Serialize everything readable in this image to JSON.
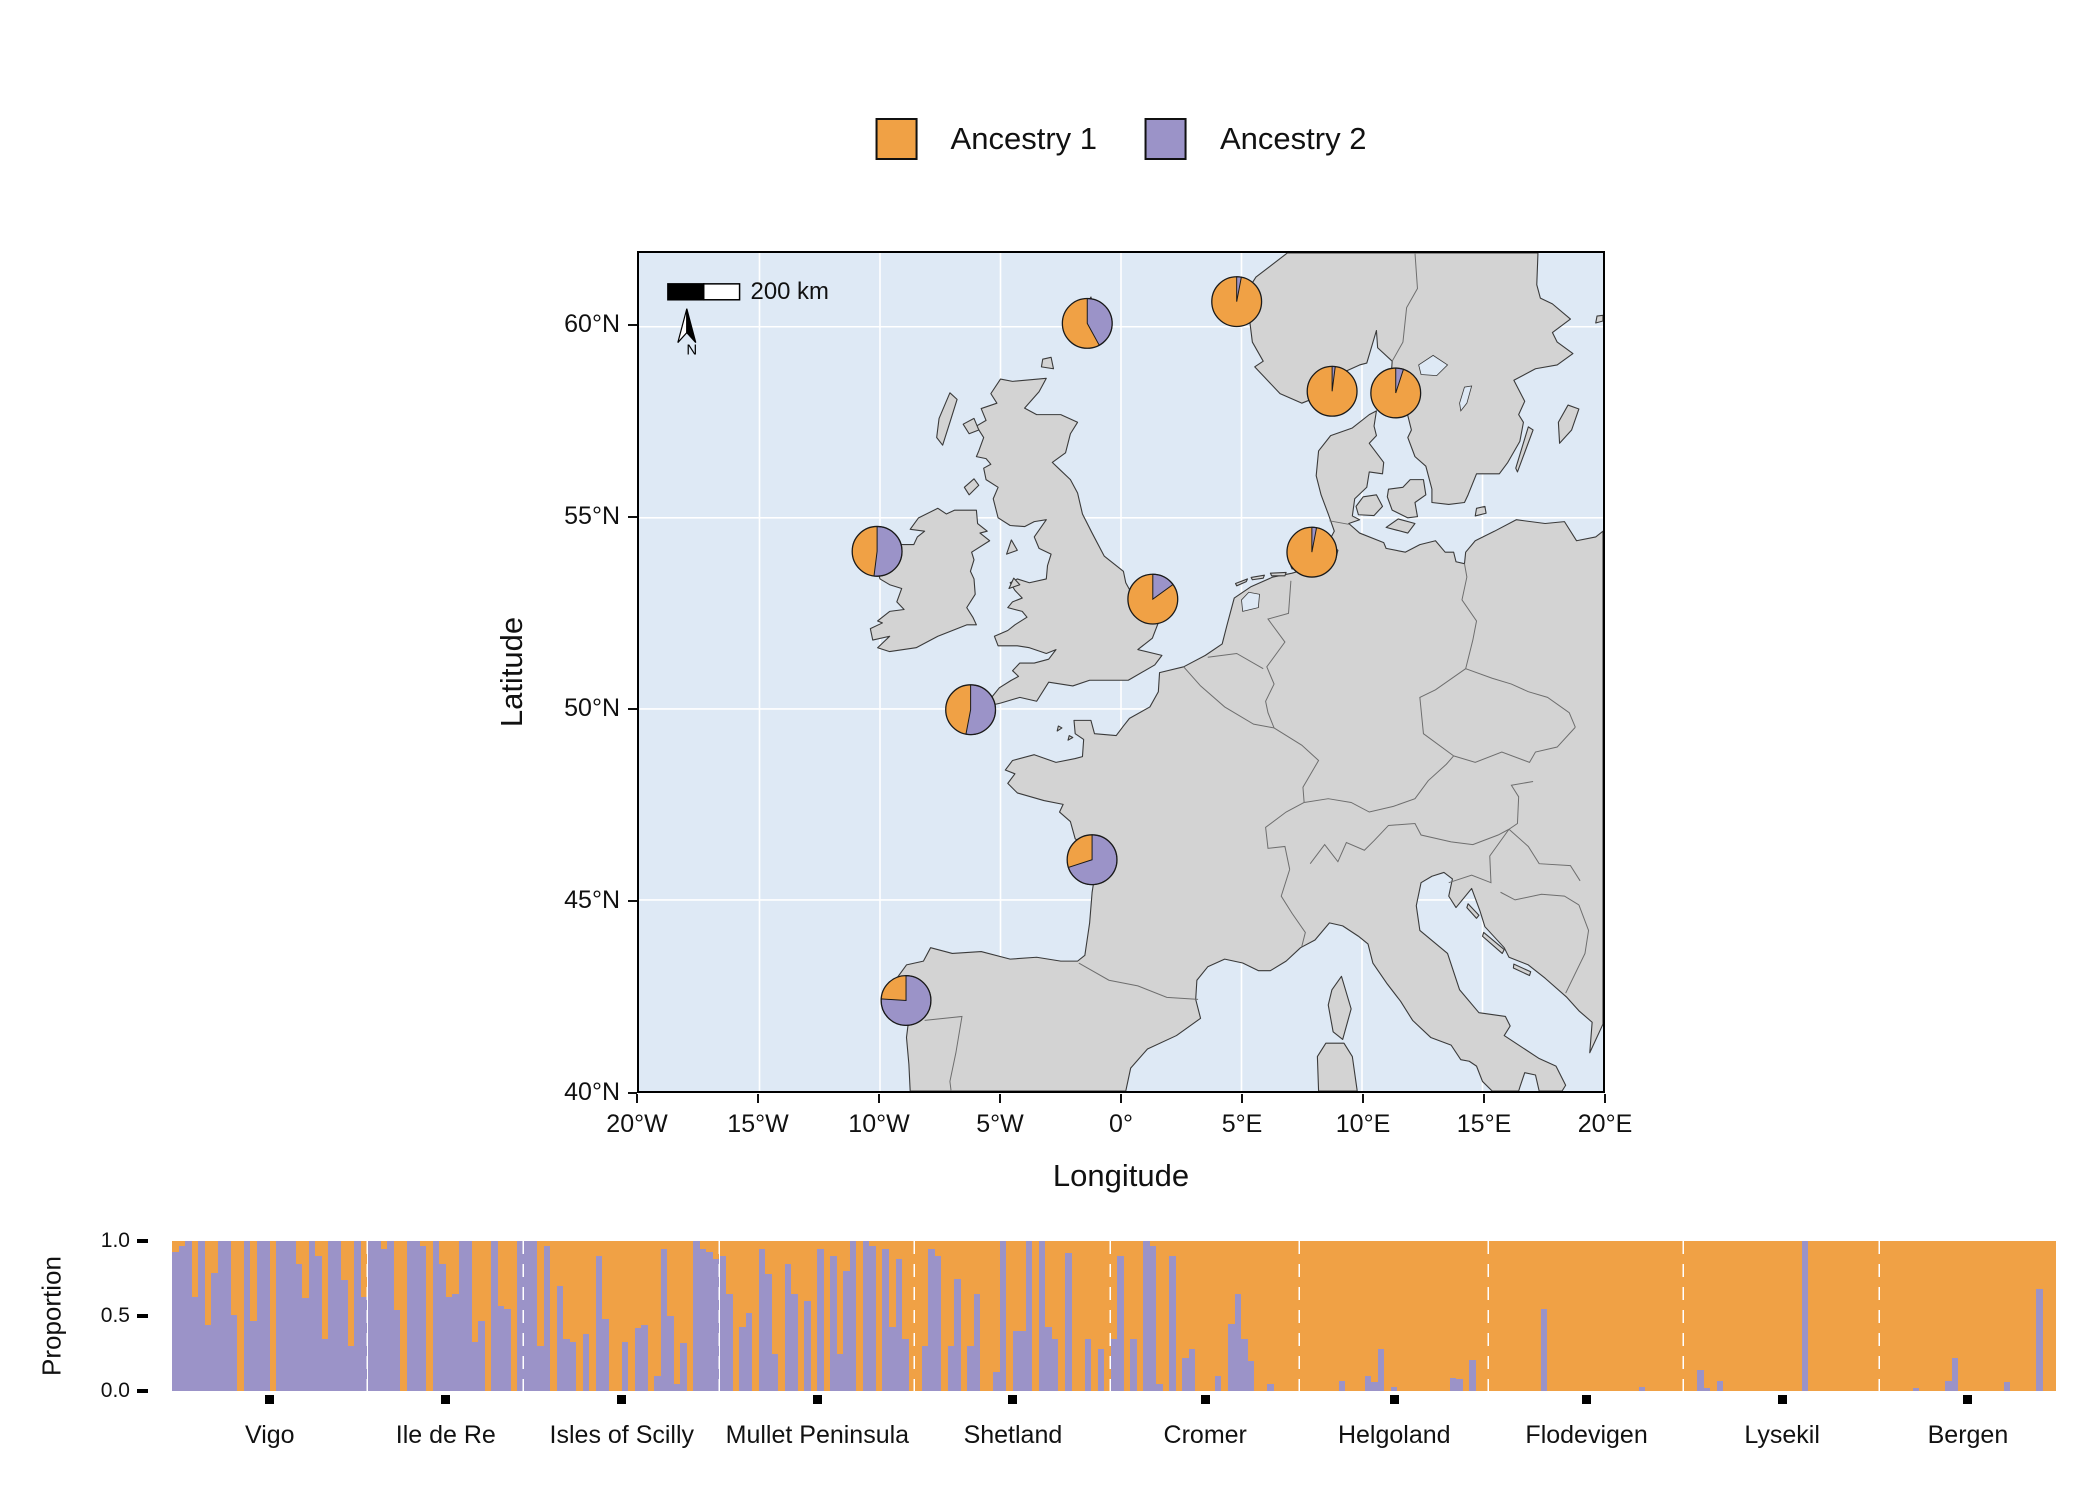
{
  "legend": {
    "items": [
      {
        "label": "Ancestry 1",
        "color": "#F0A145"
      },
      {
        "label": "Ancestry 2",
        "color": "#9B93C8"
      }
    ]
  },
  "map": {
    "xlabel": "Longitude",
    "ylabel": "Latitude",
    "x_ticks": [
      "20°W",
      "15°W",
      "10°W",
      "5°W",
      "0°",
      "5°E",
      "10°E",
      "15°E",
      "20°E"
    ],
    "y_ticks": [
      "60°N",
      "55°N",
      "50°N",
      "45°N",
      "40°N"
    ],
    "scalebar_label": "200 km",
    "north_label": "N",
    "colors": {
      "ocean": "#DEE9F5",
      "land": "#D3D3D3",
      "coast": "#3A3A3A",
      "border": "#6E6E6E",
      "grid": "#FFFFFF",
      "pie_outline": "#1A1A1A"
    }
  },
  "chart_data": [
    {
      "type": "pie",
      "description": "Ancestry proportion pies plotted on map at sampling locations; fractions of Ancestry 1 (orange) and Ancestry 2 (purple); x_frac/y_frac are positions within the map panel",
      "pies": [
        {
          "location": "Vigo",
          "ancestry1": 0.24,
          "ancestry2": 0.76,
          "x_frac": 0.277,
          "y_frac": 0.892
        },
        {
          "location": "Ile de Re",
          "ancestry1": 0.3,
          "ancestry2": 0.7,
          "x_frac": 0.47,
          "y_frac": 0.724
        },
        {
          "location": "Isles of Scilly",
          "ancestry1": 0.47,
          "ancestry2": 0.53,
          "x_frac": 0.344,
          "y_frac": 0.545
        },
        {
          "location": "Mullet Peninsula",
          "ancestry1": 0.48,
          "ancestry2": 0.52,
          "x_frac": 0.247,
          "y_frac": 0.356
        },
        {
          "location": "Shetland",
          "ancestry1": 0.58,
          "ancestry2": 0.42,
          "x_frac": 0.465,
          "y_frac": 0.084
        },
        {
          "location": "Cromer",
          "ancestry1": 0.85,
          "ancestry2": 0.15,
          "x_frac": 0.533,
          "y_frac": 0.413
        },
        {
          "location": "Helgoland",
          "ancestry1": 0.97,
          "ancestry2": 0.03,
          "x_frac": 0.698,
          "y_frac": 0.357
        },
        {
          "location": "Flodevigen",
          "ancestry1": 0.98,
          "ancestry2": 0.02,
          "x_frac": 0.719,
          "y_frac": 0.165
        },
        {
          "location": "Lysekil",
          "ancestry1": 0.95,
          "ancestry2": 0.05,
          "x_frac": 0.785,
          "y_frac": 0.167
        },
        {
          "location": "Bergen",
          "ancestry1": 0.97,
          "ancestry2": 0.03,
          "x_frac": 0.62,
          "y_frac": 0.058
        }
      ]
    },
    {
      "type": "bar",
      "stacked": true,
      "ylabel": "Proportion",
      "ylim": [
        0,
        1
      ],
      "y_tick_labels": [
        "1.0",
        "0.5",
        "0.0"
      ],
      "series_names": [
        "Ancestry 1",
        "Ancestry 2"
      ],
      "description": "Per-individual ancestry proportions (ancestry2 = purple, drawn from bottom; remainder orange = ancestry1), grouped by sampling location",
      "groups": [
        {
          "label": "Vigo",
          "ancestry2": [
            0.93,
            0.97,
            1.0,
            0.63,
            1.0,
            0.44,
            0.79,
            1.0,
            1.0,
            0.51,
            0.0,
            1.0,
            0.47,
            1.0,
            1.0,
            0.0,
            1.0,
            1.0,
            1.0,
            0.85,
            0.62,
            1.0,
            0.9,
            0.35,
            1.0,
            1.0,
            0.74,
            0.3,
            1.0,
            0.63
          ]
        },
        {
          "label": "Ile de Re",
          "ancestry2": [
            1.0,
            1.0,
            0.95,
            1.0,
            0.54,
            0.0,
            1.0,
            1.0,
            0.97,
            0.0,
            1.0,
            0.85,
            0.63,
            0.65,
            1.0,
            1.0,
            0.33,
            0.47,
            0.0,
            1.0,
            0.57,
            0.55,
            0.0,
            1.0
          ]
        },
        {
          "label": "Isles of Scilly",
          "ancestry2": [
            1.0,
            1.0,
            0.3,
            0.97,
            0.0,
            0.7,
            0.35,
            0.33,
            0.0,
            0.38,
            0.0,
            0.9,
            0.48,
            0.0,
            0.0,
            0.33,
            0.0,
            0.42,
            0.44,
            0.0,
            0.1,
            0.95,
            0.5,
            0.05,
            0.32,
            0.0,
            1.0,
            0.95,
            0.93,
            0.88
          ]
        },
        {
          "label": "Mullet Peninsula",
          "ancestry2": [
            0.9,
            0.65,
            0.0,
            0.43,
            0.52,
            0.0,
            0.95,
            0.78,
            0.25,
            0.0,
            0.85,
            0.65,
            0.0,
            0.6,
            0.0,
            0.95,
            0.0,
            0.9,
            0.25,
            0.8,
            1.0,
            0.0,
            1.0,
            0.97,
            0.0,
            0.95,
            0.43,
            0.88,
            0.35,
            0.0
          ]
        },
        {
          "label": "Shetland",
          "ancestry2": [
            0.0,
            0.3,
            0.95,
            0.9,
            0.0,
            0.3,
            0.75,
            0.0,
            0.3,
            0.65,
            0.0,
            0.0,
            0.13,
            1.0,
            0.0,
            0.4,
            0.4,
            1.0,
            0.0,
            1.0,
            0.43,
            0.35,
            0.0,
            0.92,
            0.0,
            0.0,
            0.35,
            0.0,
            0.28,
            0.0
          ]
        },
        {
          "label": "Cromer",
          "ancestry2": [
            0.35,
            0.9,
            0.0,
            0.35,
            0.0,
            1.0,
            0.97,
            0.05,
            0.0,
            0.9,
            0.0,
            0.22,
            0.28,
            0.0,
            0.0,
            0.0,
            0.1,
            0.0,
            0.45,
            0.65,
            0.35,
            0.2,
            0.0,
            0.0,
            0.05,
            0.0,
            0.0,
            0.0,
            0.0
          ]
        },
        {
          "label": "Helgoland",
          "ancestry2": [
            0.0,
            0.0,
            0.0,
            0.0,
            0.0,
            0.0,
            0.07,
            0.0,
            0.0,
            0.0,
            0.1,
            0.06,
            0.28,
            0.0,
            0.03,
            0.0,
            0.0,
            0.0,
            0.0,
            0.0,
            0.0,
            0.0,
            0.0,
            0.09,
            0.08,
            0.0,
            0.21,
            0.0,
            0.0
          ]
        },
        {
          "label": "Flodevigen",
          "ancestry2": [
            0.0,
            0.0,
            0.0,
            0.0,
            0.0,
            0.0,
            0.0,
            0.0,
            0.55,
            0.0,
            0.0,
            0.0,
            0.0,
            0.0,
            0.0,
            0.0,
            0.0,
            0.0,
            0.0,
            0.0,
            0.0,
            0.0,
            0.0,
            0.03,
            0.0,
            0.0,
            0.0,
            0.0,
            0.0,
            0.0
          ]
        },
        {
          "label": "Lysekil",
          "ancestry2": [
            0.0,
            0.0,
            0.14,
            0.02,
            0.0,
            0.07,
            0.0,
            0.0,
            0.0,
            0.0,
            0.0,
            0.0,
            0.0,
            0.0,
            0.0,
            0.0,
            0.0,
            0.0,
            1.0,
            0.0,
            0.0,
            0.0,
            0.0,
            0.0,
            0.0,
            0.0,
            0.0,
            0.0,
            0.0,
            0.0
          ]
        },
        {
          "label": "Bergen",
          "ancestry2": [
            0.0,
            0.0,
            0.0,
            0.0,
            0.0,
            0.02,
            0.0,
            0.0,
            0.0,
            0.0,
            0.07,
            0.22,
            0.0,
            0.0,
            0.0,
            0.0,
            0.0,
            0.0,
            0.0,
            0.06,
            0.0,
            0.0,
            0.0,
            0.0,
            0.68,
            0.0,
            0.0
          ]
        }
      ]
    }
  ]
}
